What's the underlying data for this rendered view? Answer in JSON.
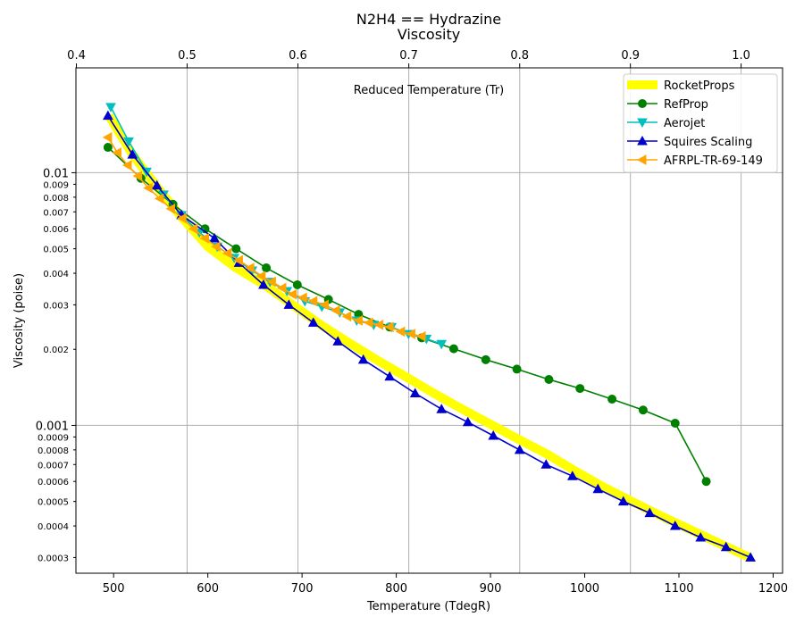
{
  "chart_data": {
    "type": "line",
    "title": "N2H4 == Hydrazine",
    "subtitle": "Viscosity",
    "xlabel": "Temperature (TdegR)",
    "ylabel": "Viscosity (poise)",
    "top_xlabel": "Reduced Temperature (Tr)",
    "xlim": [
      460,
      1210
    ],
    "ylim": [
      0.00026,
      0.026
    ],
    "yscale": "log",
    "grid": true,
    "legend_position": "top-right",
    "x_ticks": [
      "500",
      "600",
      "700",
      "800",
      "900",
      "1000",
      "1100",
      "1200"
    ],
    "y_ticks_major": [
      "0.001",
      "0.01"
    ],
    "y_ticks_minor": [
      "0.0003",
      "0.0004",
      "0.0005",
      "0.0006",
      "0.0007",
      "0.0008",
      "0.0009",
      "0.002",
      "0.003",
      "0.004",
      "0.005",
      "0.006",
      "0.007",
      "0.008",
      "0.009"
    ],
    "top_axis": {
      "ticks": [
        "0.4",
        "0.5",
        "0.6",
        "0.7",
        "0.8",
        "0.9",
        "1.0"
      ],
      "tick_temps": [
        460.5,
        578,
        695.6,
        813.3,
        931,
        1048.5,
        1166
      ],
      "grid_temps": [
        578,
        695.6,
        813.3,
        931,
        1048.5,
        1166
      ]
    },
    "series": [
      {
        "name": "RocketProps",
        "color": "#ffff00",
        "style": "thick-line",
        "x": [
          495,
          520,
          545,
          570,
          600,
          630,
          660,
          690,
          720,
          750,
          780,
          810,
          840,
          870,
          900,
          930,
          960,
          990,
          1020,
          1050,
          1080,
          1110,
          1140,
          1175
        ],
        "y": [
          0.0168,
          0.0118,
          0.0089,
          0.0068,
          0.0051,
          0.0042,
          0.0036,
          0.003,
          0.0025,
          0.00212,
          0.00181,
          0.00156,
          0.00134,
          0.00116,
          0.00101,
          0.00088,
          0.00077,
          0.00066,
          0.00057,
          0.0005,
          0.00044,
          0.00039,
          0.000345,
          0.0003
        ]
      },
      {
        "name": "RefProp",
        "color": "#008000",
        "marker": "circle",
        "x": [
          494,
          529,
          563,
          597,
          630,
          662,
          695,
          728,
          760,
          793,
          827,
          861,
          895,
          928,
          962,
          995,
          1029,
          1062,
          1096,
          1129
        ],
        "y": [
          0.0126,
          0.0095,
          0.0075,
          0.006,
          0.005,
          0.0042,
          0.0036,
          0.00315,
          0.00275,
          0.00245,
          0.00222,
          0.00201,
          0.00182,
          0.00167,
          0.00152,
          0.0014,
          0.00127,
          0.00115,
          0.00102,
          0.0006
        ]
      },
      {
        "name": "Aerojet",
        "color": "#00bfbf",
        "marker": "triangle-down",
        "x": [
          497,
          516,
          535,
          553,
          572,
          591,
          610,
          628,
          647,
          666,
          684,
          703,
          721,
          740,
          758,
          776,
          795,
          813,
          832,
          848
        ],
        "y": [
          0.0182,
          0.0133,
          0.0101,
          0.0082,
          0.0068,
          0.0058,
          0.0051,
          0.0046,
          0.0041,
          0.0037,
          0.0034,
          0.0031,
          0.00295,
          0.0028,
          0.0026,
          0.0025,
          0.00245,
          0.0023,
          0.0022,
          0.0021
        ]
      },
      {
        "name": "Squires Scaling",
        "color": "#0000cc",
        "marker": "triangle-up",
        "x": [
          494,
          520,
          546,
          572,
          607,
          633,
          659,
          686,
          712,
          738,
          765,
          793,
          820,
          848,
          876,
          903,
          931,
          959,
          987,
          1014,
          1041,
          1069,
          1096,
          1123,
          1150,
          1176
        ],
        "y": [
          0.0168,
          0.0118,
          0.0089,
          0.0068,
          0.0055,
          0.0044,
          0.0036,
          0.003,
          0.00255,
          0.00215,
          0.00182,
          0.00156,
          0.00134,
          0.00116,
          0.00103,
          0.00091,
          0.0008,
          0.0007,
          0.00063,
          0.00056,
          0.0005,
          0.00045,
          0.0004,
          0.00036,
          0.00033,
          0.0003
        ]
      },
      {
        "name": "AFRPL-TR-69-149",
        "color": "#ffa500",
        "marker": "triangle-left",
        "x": [
          494,
          504,
          515,
          526,
          537,
          549,
          561,
          573,
          585,
          597,
          609,
          621,
          633,
          645,
          657,
          668,
          679,
          690,
          701,
          712,
          724,
          736,
          748,
          760,
          771,
          782,
          793,
          805,
          816,
          827
        ],
        "y": [
          0.0138,
          0.012,
          0.0107,
          0.0097,
          0.0087,
          0.0079,
          0.0072,
          0.0066,
          0.006,
          0.0055,
          0.0051,
          0.0048,
          0.0045,
          0.0042,
          0.0039,
          0.0037,
          0.0035,
          0.0033,
          0.0032,
          0.0031,
          0.003,
          0.00285,
          0.0027,
          0.0026,
          0.00255,
          0.0025,
          0.00245,
          0.00235,
          0.0023,
          0.00225
        ]
      }
    ]
  }
}
